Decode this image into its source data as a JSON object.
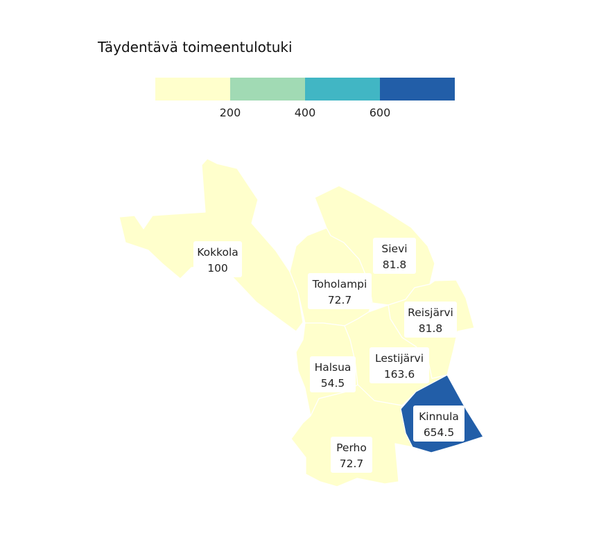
{
  "legend": {
    "title": "Täydentävä toimeentulotuki",
    "colors": [
      "#ffffcc",
      "#a1dab4",
      "#41b6c4",
      "#225ea8"
    ],
    "breaks": [
      200,
      400,
      600
    ],
    "tick_labels": [
      "200",
      "400",
      "600"
    ]
  },
  "regions": [
    {
      "id": "kokkola",
      "name": "Kokkola",
      "value_label": "100",
      "value": 100
    },
    {
      "id": "toholampi",
      "name": "Toholampi",
      "value_label": "72.7",
      "value": 72.7
    },
    {
      "id": "sievi",
      "name": "Sievi",
      "value_label": "81.8",
      "value": 81.8
    },
    {
      "id": "reisjarvi",
      "name": "Reisjärvi",
      "value_label": "81.8",
      "value": 81.8
    },
    {
      "id": "halsua",
      "name": "Halsua",
      "value_label": "54.5",
      "value": 54.5
    },
    {
      "id": "lestijarvi",
      "name": "Lestijärvi",
      "value_label": "163.6",
      "value": 163.6
    },
    {
      "id": "kinnula",
      "name": "Kinnula",
      "value_label": "654.5",
      "value": 654.5
    },
    {
      "id": "perho",
      "name": "Perho",
      "value_label": "72.7",
      "value": 72.7
    }
  ]
}
